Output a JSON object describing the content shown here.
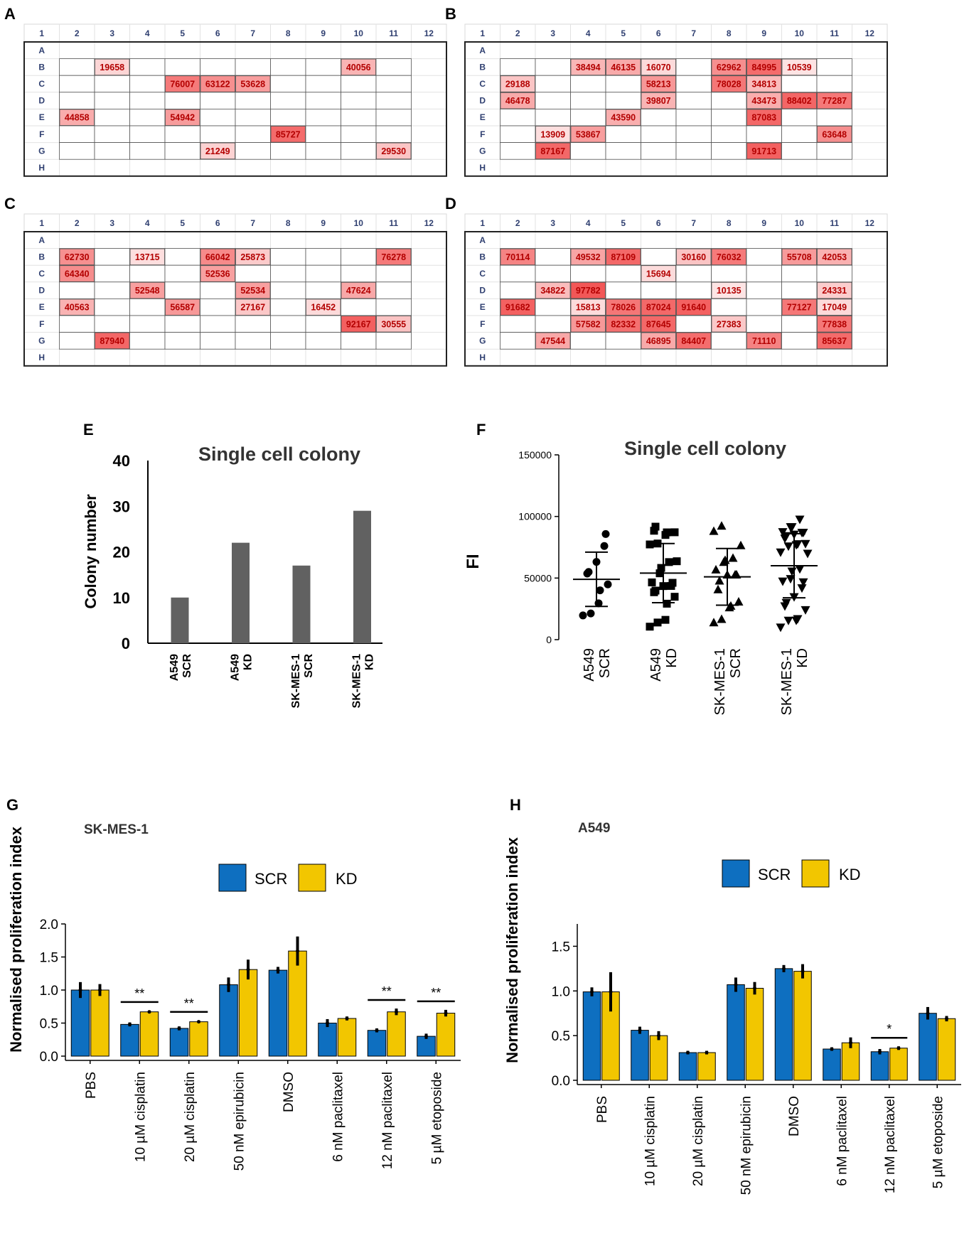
{
  "colors": {
    "scr": "#0e6fc0",
    "kd": "#f2c600",
    "bar_gray": "#616161",
    "heat_min": "#fde4e4",
    "heat_max": "#f25757",
    "well_text": "#b30000",
    "axis_text": "#2f3f70"
  },
  "plates": [
    {
      "label": "A",
      "columns": [
        "1",
        "2",
        "3",
        "4",
        "5",
        "6",
        "7",
        "8",
        "9",
        "10",
        "11",
        "12"
      ],
      "rows": [
        "A",
        "B",
        "C",
        "D",
        "E",
        "F",
        "G",
        "H"
      ],
      "wells": [
        {
          "row": "B",
          "col": 3,
          "value": 19658
        },
        {
          "row": "B",
          "col": 10,
          "value": 40056
        },
        {
          "row": "C",
          "col": 5,
          "value": 76007
        },
        {
          "row": "C",
          "col": 6,
          "value": 63122
        },
        {
          "row": "C",
          "col": 7,
          "value": 53628
        },
        {
          "row": "E",
          "col": 2,
          "value": 44858
        },
        {
          "row": "E",
          "col": 5,
          "value": 54942
        },
        {
          "row": "F",
          "col": 8,
          "value": 85727
        },
        {
          "row": "G",
          "col": 6,
          "value": 21249
        },
        {
          "row": "G",
          "col": 11,
          "value": 29530
        }
      ]
    },
    {
      "label": "B",
      "columns": [
        "1",
        "2",
        "3",
        "4",
        "5",
        "6",
        "7",
        "8",
        "9",
        "10",
        "11",
        "12"
      ],
      "rows": [
        "A",
        "B",
        "C",
        "D",
        "E",
        "F",
        "G",
        "H"
      ],
      "wells": [
        {
          "row": "B",
          "col": 4,
          "value": 38494
        },
        {
          "row": "B",
          "col": 5,
          "value": 46135
        },
        {
          "row": "B",
          "col": 6,
          "value": 16070
        },
        {
          "row": "B",
          "col": 8,
          "value": 62962
        },
        {
          "row": "B",
          "col": 9,
          "value": 84995
        },
        {
          "row": "B",
          "col": 10,
          "value": 10539
        },
        {
          "row": "C",
          "col": 2,
          "value": 29188
        },
        {
          "row": "C",
          "col": 6,
          "value": 58213
        },
        {
          "row": "C",
          "col": 8,
          "value": 78028
        },
        {
          "row": "C",
          "col": 9,
          "value": 34813
        },
        {
          "row": "D",
          "col": 2,
          "value": 46478
        },
        {
          "row": "D",
          "col": 6,
          "value": 39807
        },
        {
          "row": "D",
          "col": 9,
          "value": 43473
        },
        {
          "row": "D",
          "col": 10,
          "value": 88402
        },
        {
          "row": "D",
          "col": 11,
          "value": 77287
        },
        {
          "row": "E",
          "col": 5,
          "value": 43590
        },
        {
          "row": "E",
          "col": 9,
          "value": 87083
        },
        {
          "row": "F",
          "col": 3,
          "value": 13909
        },
        {
          "row": "F",
          "col": 4,
          "value": 53867
        },
        {
          "row": "F",
          "col": 11,
          "value": 63648
        },
        {
          "row": "G",
          "col": 3,
          "value": 87167
        },
        {
          "row": "G",
          "col": 9,
          "value": 91713
        }
      ]
    },
    {
      "label": "C",
      "columns": [
        "1",
        "2",
        "3",
        "4",
        "5",
        "6",
        "7",
        "8",
        "9",
        "10",
        "11",
        "12"
      ],
      "rows": [
        "A",
        "B",
        "C",
        "D",
        "E",
        "F",
        "G",
        "H"
      ],
      "wells": [
        {
          "row": "B",
          "col": 2,
          "value": 62730
        },
        {
          "row": "B",
          "col": 4,
          "value": 13715
        },
        {
          "row": "B",
          "col": 6,
          "value": 66042
        },
        {
          "row": "B",
          "col": 7,
          "value": 25873
        },
        {
          "row": "B",
          "col": 11,
          "value": 76278
        },
        {
          "row": "C",
          "col": 2,
          "value": 64340
        },
        {
          "row": "C",
          "col": 6,
          "value": 52536
        },
        {
          "row": "D",
          "col": 4,
          "value": 52548
        },
        {
          "row": "D",
          "col": 7,
          "value": 52534
        },
        {
          "row": "D",
          "col": 10,
          "value": 47624
        },
        {
          "row": "E",
          "col": 2,
          "value": 40563
        },
        {
          "row": "E",
          "col": 5,
          "value": 56587
        },
        {
          "row": "E",
          "col": 7,
          "value": 27167
        },
        {
          "row": "E",
          "col": 9,
          "value": 16452
        },
        {
          "row": "F",
          "col": 10,
          "value": 92167
        },
        {
          "row": "F",
          "col": 11,
          "value": 30555
        },
        {
          "row": "G",
          "col": 3,
          "value": 87940
        }
      ]
    },
    {
      "label": "D",
      "columns": [
        "1",
        "2",
        "3",
        "4",
        "5",
        "6",
        "7",
        "8",
        "9",
        "10",
        "11",
        "12"
      ],
      "rows": [
        "A",
        "B",
        "C",
        "D",
        "E",
        "F",
        "G",
        "H"
      ],
      "wells": [
        {
          "row": "B",
          "col": 2,
          "value": 70114
        },
        {
          "row": "B",
          "col": 4,
          "value": 49532
        },
        {
          "row": "B",
          "col": 5,
          "value": 87109
        },
        {
          "row": "B",
          "col": 7,
          "value": 30160
        },
        {
          "row": "B",
          "col": 8,
          "value": 76032
        },
        {
          "row": "B",
          "col": 10,
          "value": 55708
        },
        {
          "row": "B",
          "col": 11,
          "value": 42053
        },
        {
          "row": "C",
          "col": 6,
          "value": 15694
        },
        {
          "row": "D",
          "col": 3,
          "value": 34822
        },
        {
          "row": "D",
          "col": 4,
          "value": 97782
        },
        {
          "row": "D",
          "col": 8,
          "value": 10135
        },
        {
          "row": "D",
          "col": 11,
          "value": 24331
        },
        {
          "row": "E",
          "col": 2,
          "value": 91682
        },
        {
          "row": "E",
          "col": 4,
          "value": 15813
        },
        {
          "row": "E",
          "col": 5,
          "value": 78026
        },
        {
          "row": "E",
          "col": 6,
          "value": 87024
        },
        {
          "row": "E",
          "col": 7,
          "value": 91640
        },
        {
          "row": "E",
          "col": 10,
          "value": 77127
        },
        {
          "row": "E",
          "col": 11,
          "value": 17049
        },
        {
          "row": "F",
          "col": 4,
          "value": 57582
        },
        {
          "row": "F",
          "col": 5,
          "value": 82332
        },
        {
          "row": "F",
          "col": 6,
          "value": 87645
        },
        {
          "row": "F",
          "col": 8,
          "value": 27383
        },
        {
          "row": "F",
          "col": 11,
          "value": 77838
        },
        {
          "row": "G",
          "col": 3,
          "value": 47544
        },
        {
          "row": "G",
          "col": 6,
          "value": 46895
        },
        {
          "row": "G",
          "col": 7,
          "value": 84407
        },
        {
          "row": "G",
          "col": 9,
          "value": 71110
        },
        {
          "row": "G",
          "col": 11,
          "value": 85637
        }
      ]
    }
  ],
  "chart_data": [
    {
      "id": "E",
      "panel_label": "E",
      "type": "bar",
      "title": "Single cell colony",
      "ylabel": "Colony number",
      "ylim": [
        0,
        40
      ],
      "yticks": [
        "0",
        "10",
        "20",
        "30",
        "40"
      ],
      "categories": [
        [
          "A549",
          "SCR"
        ],
        [
          "A549",
          "KD"
        ],
        [
          "SK-MES-1",
          "SCR"
        ],
        [
          "SK-MES-1",
          "KD"
        ]
      ],
      "values": [
        10,
        22,
        17,
        29
      ]
    },
    {
      "id": "F",
      "panel_label": "F",
      "type": "scatter",
      "title": "Single cell colony",
      "ylabel": "FI",
      "ylim": [
        0,
        150000
      ],
      "yticks": [
        "0",
        "50000",
        "100000",
        "150000"
      ],
      "categories": [
        [
          "A549",
          "SCR"
        ],
        [
          "A549",
          "KD"
        ],
        [
          "SK-MES-1",
          "SCR"
        ],
        [
          "SK-MES-1",
          "KD"
        ]
      ],
      "markers": [
        "circle",
        "square",
        "triangle-up",
        "triangle-down"
      ],
      "groups": [
        {
          "mean": 49000,
          "sd": 22000,
          "values": [
            19658,
            21249,
            29530,
            40056,
            44858,
            53628,
            54942,
            63122,
            76007,
            85727
          ]
        },
        {
          "mean": 54000,
          "sd": 24000,
          "values": [
            10539,
            13909,
            16070,
            29188,
            34813,
            38494,
            39807,
            43473,
            43590,
            46135,
            46478,
            53867,
            58213,
            62962,
            63648,
            77287,
            78028,
            84995,
            87083,
            87167,
            88402,
            91713
          ]
        },
        {
          "mean": 51000,
          "sd": 23000,
          "values": [
            13715,
            16452,
            25873,
            27167,
            30555,
            40563,
            47624,
            52534,
            52536,
            52548,
            56587,
            62730,
            64340,
            66042,
            76278,
            87940,
            92167
          ]
        },
        {
          "mean": 60000,
          "sd": 26000,
          "values": [
            10135,
            15694,
            15813,
            17049,
            24331,
            27383,
            30160,
            34822,
            42053,
            46895,
            47544,
            49532,
            55708,
            57582,
            70114,
            71110,
            76032,
            77127,
            77838,
            78026,
            82332,
            84407,
            85637,
            87024,
            87109,
            87645,
            91640,
            91682,
            97782
          ]
        }
      ]
    },
    {
      "id": "G",
      "panel_label": "G",
      "type": "bar",
      "title": "SK-MES-1",
      "ylabel": "Normalised proliferation index",
      "ylim": [
        0,
        2.0
      ],
      "yticks": [
        "0.0",
        "0.5",
        "1.0",
        "1.5",
        "2.0"
      ],
      "legend": [
        "SCR",
        "KD"
      ],
      "categories": [
        "PBS",
        "10 µM cisplatin",
        "20 µM cisplatin",
        "50 nM epirubicin",
        "DMSO",
        "6 nM paclitaxel",
        "12 nM paclitaxel",
        "5 µM etoposide"
      ],
      "series": [
        {
          "name": "SCR",
          "values": [
            1.0,
            0.48,
            0.42,
            1.08,
            1.3,
            0.5,
            0.39,
            0.3
          ],
          "errors": [
            0.12,
            0.03,
            0.03,
            0.11,
            0.05,
            0.06,
            0.03,
            0.04
          ]
        },
        {
          "name": "KD",
          "values": [
            1.0,
            0.67,
            0.52,
            1.31,
            1.59,
            0.57,
            0.67,
            0.65
          ],
          "errors": [
            0.09,
            0.02,
            0.02,
            0.15,
            0.22,
            0.03,
            0.05,
            0.05
          ]
        }
      ],
      "significance": [
        {
          "index": 1,
          "label": "**"
        },
        {
          "index": 2,
          "label": "**"
        },
        {
          "index": 6,
          "label": "**"
        },
        {
          "index": 7,
          "label": "**"
        }
      ]
    },
    {
      "id": "H",
      "panel_label": "H",
      "type": "bar",
      "title": "A549",
      "ylabel": "Normalised proliferation index",
      "ylim": [
        0,
        1.75
      ],
      "yticks": [
        "0.0",
        "0.5",
        "1.0",
        "1.5"
      ],
      "legend": [
        "SCR",
        "KD"
      ],
      "categories": [
        "PBS",
        "10 µM cisplatin",
        "20 µM cisplatin",
        "50 nM epirubicin",
        "DMSO",
        "6 nM paclitaxel",
        "12 nM paclitaxel",
        "5 µM etoposide"
      ],
      "series": [
        {
          "name": "SCR",
          "values": [
            0.99,
            0.56,
            0.31,
            1.07,
            1.25,
            0.35,
            0.32,
            0.75
          ],
          "errors": [
            0.05,
            0.04,
            0.02,
            0.08,
            0.04,
            0.02,
            0.03,
            0.07
          ]
        },
        {
          "name": "KD",
          "values": [
            0.99,
            0.5,
            0.31,
            1.03,
            1.22,
            0.42,
            0.36,
            0.69
          ],
          "errors": [
            0.22,
            0.05,
            0.02,
            0.07,
            0.08,
            0.06,
            0.02,
            0.03
          ]
        }
      ],
      "significance": [
        {
          "index": 6,
          "label": "*"
        }
      ]
    }
  ]
}
